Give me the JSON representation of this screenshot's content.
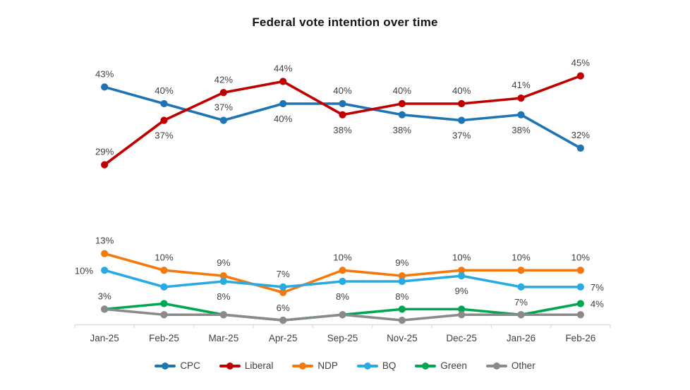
{
  "chart_data": {
    "type": "line",
    "title": "Federal vote intention over time",
    "unit": "%",
    "categories": [
      "Jan-25",
      "Feb-25",
      "Mar-25",
      "Apr-25",
      "Sep-25",
      "Nov-25",
      "Dec-25",
      "Jan-26",
      "Feb-26"
    ],
    "ylim": [
      0,
      48
    ],
    "grid": false,
    "y_axis_visible": false,
    "legend_position": "bottom",
    "axis_color": "#d9d9d9",
    "tick_label_color": "#404040",
    "data_label_color": "#3f3f3f",
    "series": [
      {
        "name": "CPC",
        "color": "#1f74b4",
        "values": [
          43,
          40,
          37,
          40,
          40,
          38,
          37,
          38,
          32
        ],
        "labels": [
          "43%",
          "40%",
          "37%",
          "40%",
          "40%",
          "38%",
          "37%",
          "38%",
          "32%"
        ],
        "label_positions": [
          "above",
          "above",
          "above",
          "below",
          "above",
          "below",
          "below",
          "below",
          "above"
        ]
      },
      {
        "name": "Liberal",
        "color": "#c00000",
        "values": [
          29,
          37,
          42,
          44,
          38,
          40,
          40,
          41,
          45
        ],
        "labels": [
          "29%",
          "37%",
          "42%",
          "44%",
          "38%",
          "40%",
          "40%",
          "41%",
          "45%"
        ],
        "label_positions": [
          "above",
          "below",
          "above",
          "above",
          "below",
          "above",
          "above",
          "above",
          "above"
        ]
      },
      {
        "name": "NDP",
        "color": "#f4790d",
        "values": [
          13,
          10,
          9,
          6,
          10,
          9,
          10,
          10,
          10
        ],
        "labels": [
          "13%",
          "10%",
          "9%",
          "6%",
          "10%",
          "9%",
          "10%",
          "10%",
          "10%"
        ],
        "label_positions": [
          "above",
          "above",
          "above",
          "below",
          "above",
          "above",
          "above",
          "above",
          "above"
        ]
      },
      {
        "name": "BQ",
        "color": "#29abe2",
        "values": [
          10,
          7,
          8,
          7,
          8,
          8,
          9,
          7,
          7
        ],
        "labels": [
          "10%",
          null,
          "8%",
          "7%",
          "8%",
          "8%",
          "9%",
          "7%",
          "7%"
        ],
        "label_positions": [
          "left",
          null,
          "below",
          "above",
          "below",
          "below",
          "below",
          "below",
          "right"
        ]
      },
      {
        "name": "Green",
        "color": "#00a651",
        "values": [
          3,
          4,
          2,
          1,
          2,
          3,
          3,
          2,
          4
        ],
        "labels": [
          "3%",
          null,
          null,
          null,
          null,
          null,
          null,
          null,
          "4%"
        ],
        "label_positions": [
          "above",
          null,
          null,
          null,
          null,
          null,
          null,
          null,
          "right"
        ]
      },
      {
        "name": "Other",
        "color": "#8a8a8a",
        "values": [
          3,
          2,
          2,
          1,
          2,
          1,
          2,
          2,
          2
        ],
        "labels": [
          null,
          null,
          null,
          null,
          null,
          null,
          null,
          null,
          null
        ],
        "label_positions": [
          null,
          null,
          null,
          null,
          null,
          null,
          null,
          null,
          null
        ]
      }
    ]
  }
}
